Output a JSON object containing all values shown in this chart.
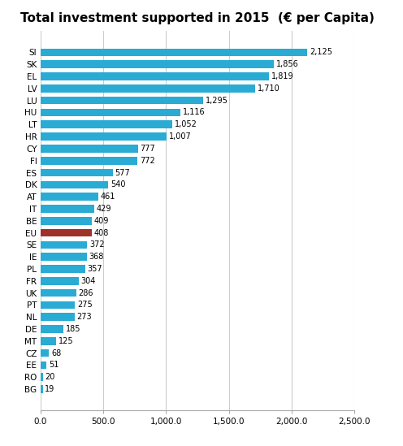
{
  "title": "Total investment supported in 2015  (€ per Capita)",
  "categories": [
    "SI",
    "SK",
    "EL",
    "LV",
    "LU",
    "HU",
    "LT",
    "HR",
    "CY",
    "FI",
    "ES",
    "DK",
    "AT",
    "IT",
    "BE",
    "EU",
    "SE",
    "IE",
    "PL",
    "FR",
    "UK",
    "PT",
    "NL",
    "DE",
    "MT",
    "CZ",
    "EE",
    "RO",
    "BG"
  ],
  "values": [
    2125,
    1856,
    1819,
    1710,
    1295,
    1116,
    1052,
    1007,
    777,
    772,
    577,
    540,
    461,
    429,
    409,
    408,
    372,
    368,
    357,
    304,
    286,
    275,
    273,
    185,
    125,
    68,
    51,
    20,
    19
  ],
  "bar_color_default": "#29ABD4",
  "bar_color_eu": "#A0312A",
  "eu_index": 15,
  "xlim": [
    0,
    2500
  ],
  "xticks": [
    0,
    500,
    1000,
    1500,
    2000,
    2500
  ],
  "xtick_labels": [
    "0.0",
    "500.0",
    "1,000.0",
    "1,500.0",
    "2,000.0",
    "2,500.0"
  ],
  "label_fontsize": 7.5,
  "title_fontsize": 11,
  "tick_label_fontsize": 7.5,
  "value_label_fontsize": 7.0,
  "bar_height": 0.65,
  "grid_color": "#CCCCCC",
  "bg_color": "#FFFFFF"
}
